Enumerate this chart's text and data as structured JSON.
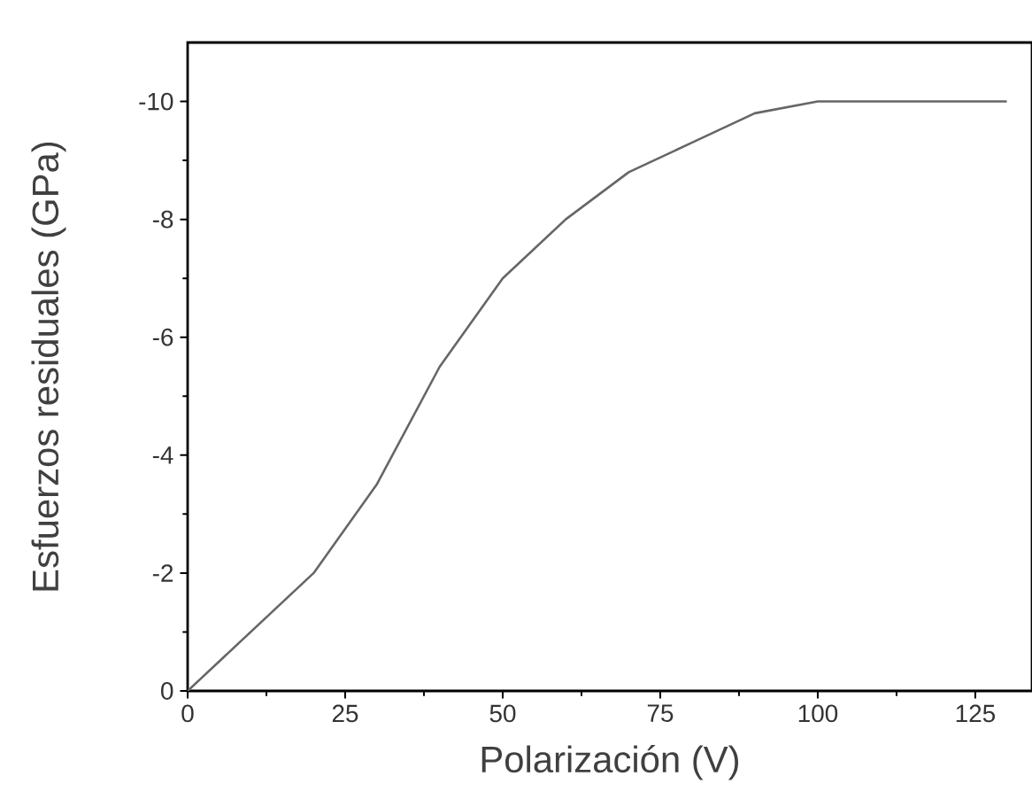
{
  "chart_data": {
    "type": "line",
    "xlabel": "Polarización (V)",
    "ylabel": "Esfuerzos residuales (GPa)",
    "x": [
      0,
      20,
      30,
      40,
      50,
      60,
      70,
      80,
      90,
      100,
      130
    ],
    "series": [
      {
        "color": "#666666",
        "values": [
          0,
          -2,
          -3.5,
          -5.5,
          -7,
          -8,
          -8.8,
          -9.3,
          -9.8,
          -10,
          -10
        ]
      }
    ],
    "xlim": [
      0,
      134
    ],
    "ylim": [
      0,
      -11
    ],
    "xticks": [
      0,
      25,
      50,
      75,
      100,
      125
    ],
    "yticks": [
      0,
      -2,
      -4,
      -6,
      -8,
      -10
    ],
    "grid": false,
    "marker": "none",
    "line_style": "solid"
  }
}
